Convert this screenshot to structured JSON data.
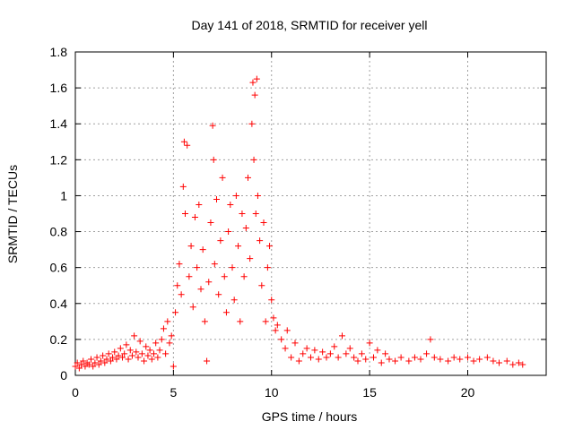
{
  "chart_data": {
    "type": "scatter",
    "title": "Day 141 of 2018, SRMTID for receiver yell",
    "xlabel": "GPS time / hours",
    "ylabel": "SRMTID / TECUs",
    "xlim": [
      0,
      24
    ],
    "ylim": [
      0,
      1.8
    ],
    "x_ticks": [
      0,
      5,
      10,
      15,
      20
    ],
    "y_ticks": [
      0,
      0.2,
      0.4,
      0.6,
      0.8,
      1,
      1.2,
      1.4,
      1.6,
      1.8
    ],
    "x_tick_labels": [
      "0",
      "5",
      "10",
      "15",
      "20"
    ],
    "y_tick_labels": [
      "0",
      "0.2",
      "0.4",
      "0.6",
      "0.8",
      "1",
      "1.2",
      "1.4",
      "1.6",
      "1.8"
    ],
    "grid": true,
    "marker": "+",
    "color": "#ff0000",
    "series": [
      {
        "name": "SRMTID",
        "points": [
          [
            0.0,
            0.05
          ],
          [
            0.1,
            0.07
          ],
          [
            0.2,
            0.04
          ],
          [
            0.3,
            0.06
          ],
          [
            0.4,
            0.08
          ],
          [
            0.5,
            0.05
          ],
          [
            0.6,
            0.07
          ],
          [
            0.7,
            0.06
          ],
          [
            0.8,
            0.09
          ],
          [
            0.9,
            0.05
          ],
          [
            1.0,
            0.07
          ],
          [
            1.1,
            0.1
          ],
          [
            1.2,
            0.06
          ],
          [
            1.3,
            0.08
          ],
          [
            1.4,
            0.11
          ],
          [
            1.5,
            0.07
          ],
          [
            1.6,
            0.09
          ],
          [
            1.7,
            0.12
          ],
          [
            1.8,
            0.08
          ],
          [
            1.9,
            0.1
          ],
          [
            2.0,
            0.13
          ],
          [
            2.1,
            0.09
          ],
          [
            2.2,
            0.11
          ],
          [
            2.3,
            0.15
          ],
          [
            2.4,
            0.1
          ],
          [
            2.5,
            0.12
          ],
          [
            2.6,
            0.17
          ],
          [
            2.7,
            0.09
          ],
          [
            2.8,
            0.14
          ],
          [
            2.9,
            0.11
          ],
          [
            3.0,
            0.22
          ],
          [
            3.1,
            0.13
          ],
          [
            3.2,
            0.1
          ],
          [
            3.3,
            0.19
          ],
          [
            3.4,
            0.12
          ],
          [
            3.5,
            0.08
          ],
          [
            3.6,
            0.16
          ],
          [
            3.7,
            0.11
          ],
          [
            3.8,
            0.14
          ],
          [
            3.9,
            0.09
          ],
          [
            4.0,
            0.12
          ],
          [
            4.1,
            0.18
          ],
          [
            4.2,
            0.1
          ],
          [
            4.3,
            0.14
          ],
          [
            4.4,
            0.2
          ],
          [
            4.5,
            0.26
          ],
          [
            4.6,
            0.12
          ],
          [
            4.7,
            0.3
          ],
          [
            4.8,
            0.18
          ],
          [
            4.9,
            0.22
          ],
          [
            5.0,
            0.05
          ],
          [
            5.1,
            0.35
          ],
          [
            5.2,
            0.5
          ],
          [
            5.3,
            0.62
          ],
          [
            5.4,
            0.45
          ],
          [
            5.5,
            1.05
          ],
          [
            5.55,
            1.3
          ],
          [
            5.6,
            0.9
          ],
          [
            5.7,
            1.28
          ],
          [
            5.8,
            0.55
          ],
          [
            5.9,
            0.72
          ],
          [
            6.0,
            0.38
          ],
          [
            6.1,
            0.88
          ],
          [
            6.2,
            0.6
          ],
          [
            6.3,
            0.95
          ],
          [
            6.4,
            0.48
          ],
          [
            6.5,
            0.7
          ],
          [
            6.6,
            0.3
          ],
          [
            6.7,
            0.08
          ],
          [
            6.8,
            0.52
          ],
          [
            6.9,
            0.85
          ],
          [
            7.0,
            1.39
          ],
          [
            7.05,
            1.2
          ],
          [
            7.1,
            0.62
          ],
          [
            7.2,
            0.98
          ],
          [
            7.3,
            0.45
          ],
          [
            7.4,
            0.75
          ],
          [
            7.5,
            1.1
          ],
          [
            7.6,
            0.55
          ],
          [
            7.7,
            0.35
          ],
          [
            7.8,
            0.8
          ],
          [
            7.9,
            0.95
          ],
          [
            8.0,
            0.6
          ],
          [
            8.1,
            0.42
          ],
          [
            8.2,
            1.0
          ],
          [
            8.3,
            0.72
          ],
          [
            8.4,
            0.3
          ],
          [
            8.5,
            0.9
          ],
          [
            8.6,
            0.55
          ],
          [
            8.7,
            0.82
          ],
          [
            8.8,
            1.1
          ],
          [
            8.9,
            0.65
          ],
          [
            9.0,
            1.4
          ],
          [
            9.05,
            1.63
          ],
          [
            9.1,
            1.2
          ],
          [
            9.15,
            1.56
          ],
          [
            9.2,
            0.9
          ],
          [
            9.25,
            1.65
          ],
          [
            9.3,
            1.0
          ],
          [
            9.4,
            0.75
          ],
          [
            9.5,
            0.5
          ],
          [
            9.6,
            0.85
          ],
          [
            9.7,
            0.3
          ],
          [
            9.8,
            0.6
          ],
          [
            9.9,
            0.72
          ],
          [
            10.0,
            0.42
          ],
          [
            10.1,
            0.32
          ],
          [
            10.2,
            0.25
          ],
          [
            10.3,
            0.28
          ],
          [
            10.5,
            0.2
          ],
          [
            10.7,
            0.15
          ],
          [
            10.8,
            0.25
          ],
          [
            11.0,
            0.1
          ],
          [
            11.2,
            0.18
          ],
          [
            11.4,
            0.08
          ],
          [
            11.6,
            0.12
          ],
          [
            11.8,
            0.15
          ],
          [
            12.0,
            0.1
          ],
          [
            12.2,
            0.14
          ],
          [
            12.4,
            0.09
          ],
          [
            12.6,
            0.13
          ],
          [
            12.8,
            0.1
          ],
          [
            13.0,
            0.12
          ],
          [
            13.2,
            0.16
          ],
          [
            13.4,
            0.1
          ],
          [
            13.6,
            0.22
          ],
          [
            13.8,
            0.12
          ],
          [
            14.0,
            0.15
          ],
          [
            14.2,
            0.1
          ],
          [
            14.4,
            0.08
          ],
          [
            14.6,
            0.12
          ],
          [
            14.8,
            0.09
          ],
          [
            15.0,
            0.18
          ],
          [
            15.2,
            0.1
          ],
          [
            15.4,
            0.14
          ],
          [
            15.6,
            0.07
          ],
          [
            15.8,
            0.12
          ],
          [
            16.0,
            0.09
          ],
          [
            16.3,
            0.08
          ],
          [
            16.6,
            0.1
          ],
          [
            17.0,
            0.08
          ],
          [
            17.3,
            0.1
          ],
          [
            17.6,
            0.09
          ],
          [
            17.9,
            0.12
          ],
          [
            18.1,
            0.2
          ],
          [
            18.3,
            0.1
          ],
          [
            18.6,
            0.09
          ],
          [
            19.0,
            0.08
          ],
          [
            19.3,
            0.1
          ],
          [
            19.6,
            0.09
          ],
          [
            20.0,
            0.1
          ],
          [
            20.3,
            0.08
          ],
          [
            20.6,
            0.09
          ],
          [
            21.0,
            0.1
          ],
          [
            21.3,
            0.08
          ],
          [
            21.6,
            0.07
          ],
          [
            22.0,
            0.08
          ],
          [
            22.3,
            0.06
          ],
          [
            22.6,
            0.07
          ],
          [
            22.8,
            0.06
          ]
        ]
      }
    ]
  }
}
